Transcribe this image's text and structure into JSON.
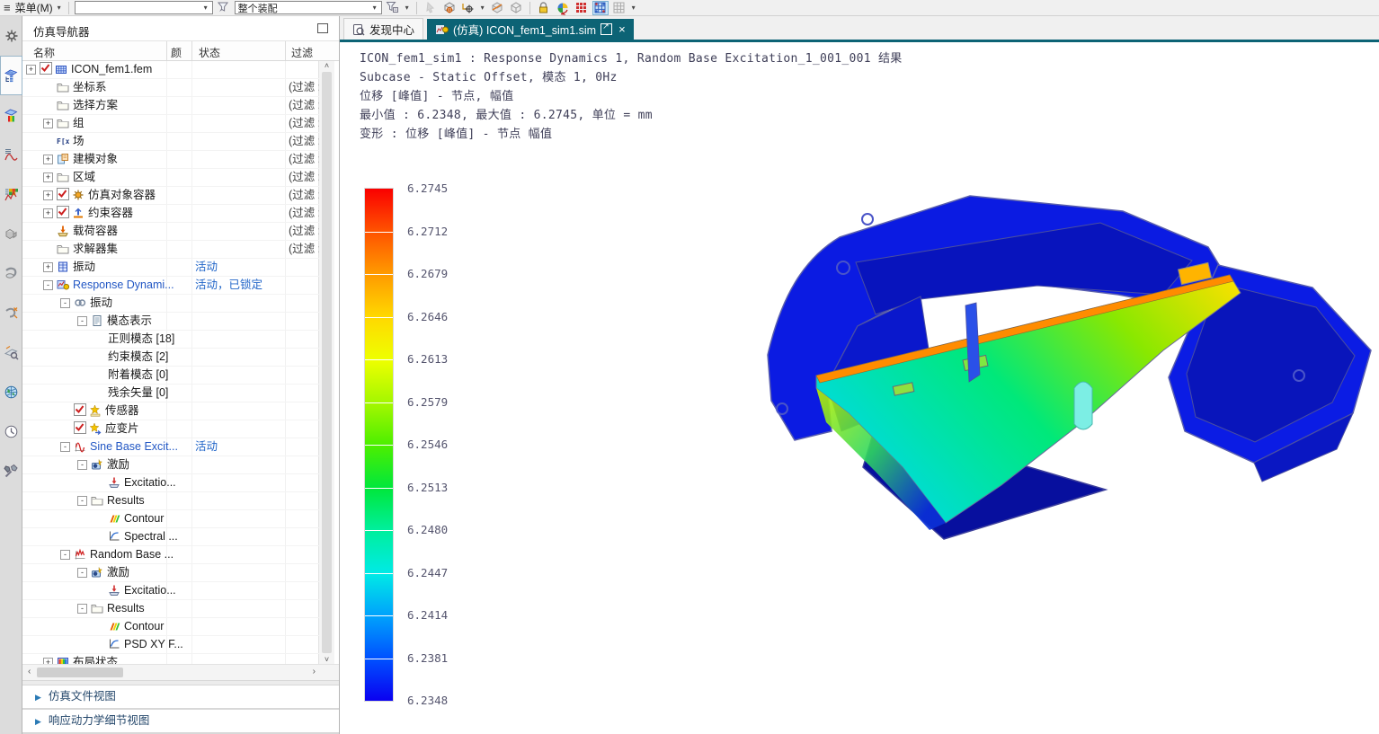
{
  "toolbar": {
    "menu_label": "菜单(M)",
    "assembly_filter_value": "整个装配",
    "search_value": "",
    "icons": [
      "filter-reset-icon",
      "type-filter-icon",
      "select-disabled-icon",
      "snap-cube-icon",
      "snap-point-icon",
      "section-cube-icon",
      "cube-icon",
      "lock-icon",
      "render-style-icon",
      "mesh-grid-red-icon",
      "mesh-grid-blue-icon",
      "mesh-grid-gray-icon"
    ]
  },
  "tabs": [
    {
      "label": "发现中心",
      "active": false
    },
    {
      "label": "(仿真) ICON_fem1_sim1.sim",
      "active": true
    }
  ],
  "left_strip": {
    "icons": [
      "gear",
      "sim-navigator",
      "post-navigator",
      "xy-function",
      "solution-monitor",
      "parts",
      "clamp",
      "clamp-measure",
      "measure",
      "web-browser",
      "history",
      "tools"
    ],
    "selected": "sim-navigator"
  },
  "navigator": {
    "title": "仿真导航器",
    "columns": [
      "名称",
      "颜",
      "状态",
      "过滤"
    ],
    "filter_text": "(过滤 :",
    "rows": [
      {
        "indent": 0,
        "expand": "+",
        "checkbox": true,
        "icon": "fem",
        "label": "ICON_fem1.fem"
      },
      {
        "indent": 1,
        "icon": "folder",
        "label": "坐标系",
        "filter": true
      },
      {
        "indent": 1,
        "icon": "folder",
        "label": "选择方案",
        "filter": true
      },
      {
        "indent": 1,
        "expand": "+",
        "icon": "folder",
        "label": "组",
        "filter": true
      },
      {
        "indent": 1,
        "icon": "field",
        "label": "场",
        "filter": true
      },
      {
        "indent": 1,
        "expand": "+",
        "icon": "modeling",
        "label": "建模对象",
        "filter": true
      },
      {
        "indent": 1,
        "expand": "+",
        "icon": "folder",
        "label": "区域",
        "filter": true
      },
      {
        "indent": 1,
        "expand": "+",
        "checkbox": true,
        "icon": "simobj",
        "label": "仿真对象容器",
        "filter": true
      },
      {
        "indent": 1,
        "expand": "+",
        "checkbox": true,
        "icon": "constraint",
        "label": "约束容器",
        "filter": true
      },
      {
        "indent": 1,
        "icon": "load",
        "label": "载荷容器",
        "filter": true
      },
      {
        "indent": 1,
        "icon": "folder",
        "label": "求解器集",
        "filter": true
      },
      {
        "indent": 1,
        "expand": "+",
        "icon": "vibration",
        "label": "振动",
        "status": "活动"
      },
      {
        "indent": 1,
        "expand": "-",
        "icon": "respdyn",
        "label": "Response Dynami...",
        "blue": true,
        "status": "活动，已锁定"
      },
      {
        "indent": 2,
        "expand": "-",
        "icon": "link",
        "label": "振动"
      },
      {
        "indent": 3,
        "expand": "-",
        "icon": "modes",
        "label": "模态表示"
      },
      {
        "indent": 4,
        "label": "正则模态 [18]"
      },
      {
        "indent": 4,
        "label": "约束模态 [2]"
      },
      {
        "indent": 4,
        "label": "附着模态 [0]"
      },
      {
        "indent": 4,
        "label": "残余矢量 [0]"
      },
      {
        "indent": 2,
        "checkbox": true,
        "icon": "sensor",
        "label": "传感器"
      },
      {
        "indent": 2,
        "checkbox": true,
        "icon": "strain",
        "label": "应变片"
      },
      {
        "indent": 2,
        "expand": "-",
        "icon": "sine",
        "label": "Sine Base Excit...",
        "blue": true,
        "status": "活动"
      },
      {
        "indent": 3,
        "expand": "-",
        "icon": "excitation",
        "label": "激励"
      },
      {
        "indent": 4,
        "icon": "excite",
        "label": "Excitatio..."
      },
      {
        "indent": 3,
        "expand": "-",
        "icon": "folder",
        "label": "Results"
      },
      {
        "indent": 4,
        "icon": "contour",
        "label": "Contour"
      },
      {
        "indent": 4,
        "icon": "xyplot",
        "label": "Spectral ..."
      },
      {
        "indent": 2,
        "expand": "-",
        "icon": "random",
        "label": "Random Base ..."
      },
      {
        "indent": 3,
        "expand": "-",
        "icon": "excitation",
        "label": "激励"
      },
      {
        "indent": 4,
        "icon": "excite",
        "label": "Excitatio..."
      },
      {
        "indent": 3,
        "expand": "-",
        "icon": "folder",
        "label": "Results"
      },
      {
        "indent": 4,
        "icon": "contour",
        "label": "Contour"
      },
      {
        "indent": 4,
        "icon": "xyplot",
        "label": "PSD XY F..."
      },
      {
        "indent": 1,
        "expand": "+",
        "icon": "layout",
        "label": "布局状态"
      }
    ],
    "bottom_sections": [
      "仿真文件视图",
      "响应动力学细节视图"
    ]
  },
  "viewport": {
    "result_lines": [
      "ICON_fem1_sim1 : Response Dynamics 1, Random Base Excitation_1_001_001 结果",
      "Subcase - Static Offset, 模态 1, 0Hz",
      "位移 [峰值] - 节点, 幅值",
      "最小值 : 6.2348, 最大值 : 6.2745, 单位 = mm",
      "变形 : 位移 [峰值] - 节点 幅值"
    ],
    "legend": {
      "labels": [
        "6.2745",
        "6.2712",
        "6.2679",
        "6.2646",
        "6.2613",
        "6.2579",
        "6.2546",
        "6.2513",
        "6.2480",
        "6.2447",
        "6.2414",
        "6.2381",
        "6.2348"
      ],
      "stops": [
        "#fa0000",
        "#ff5400",
        "#ff9b00",
        "#ffd900",
        "#eeff00",
        "#a4f700",
        "#4cef00",
        "#00e73c",
        "#00ef9d",
        "#00eae6",
        "#00a2fc",
        "#0050ff",
        "#0a00f0"
      ],
      "unit": "mm"
    }
  },
  "colors": {
    "tab_active": "#0c6375",
    "active_item_blue": "#2257c4",
    "status_blue": "#1f64c8"
  }
}
